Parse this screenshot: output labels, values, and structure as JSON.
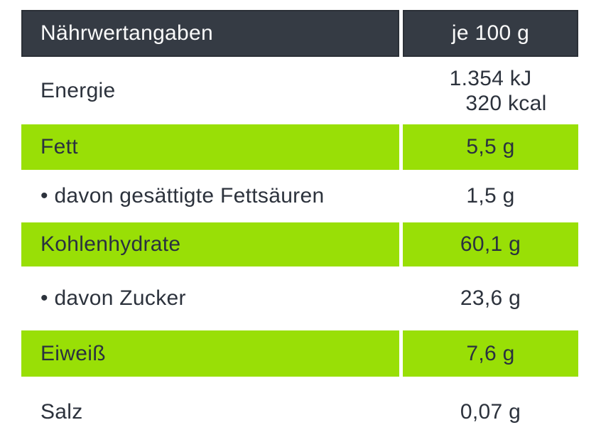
{
  "table": {
    "header": {
      "label": "Nährwertangaben",
      "value": "je 100 g"
    },
    "rows": [
      {
        "label": "Energie",
        "value_lines": [
          "1.354 kJ",
          "320 kcal"
        ],
        "highlight": false
      },
      {
        "label": "Fett",
        "value": "5,5 g",
        "highlight": true
      },
      {
        "label": "• davon gesättigte Fettsäuren",
        "value": "1,5 g",
        "highlight": false
      },
      {
        "label": "Kohlenhydrate",
        "value": "60,1 g",
        "highlight": true
      },
      {
        "label": "• davon Zucker",
        "value": "23,6 g",
        "highlight": false
      },
      {
        "label": "Eiweiß",
        "value": "7,6 g",
        "highlight": true
      },
      {
        "label": "Salz",
        "value": "0,07 g",
        "highlight": false
      }
    ],
    "colors": {
      "header_bg": "#353b44",
      "header_text": "#fafafa",
      "highlight_bg": "#99df06",
      "body_text": "#2c323c",
      "background": "#ffffff"
    }
  }
}
